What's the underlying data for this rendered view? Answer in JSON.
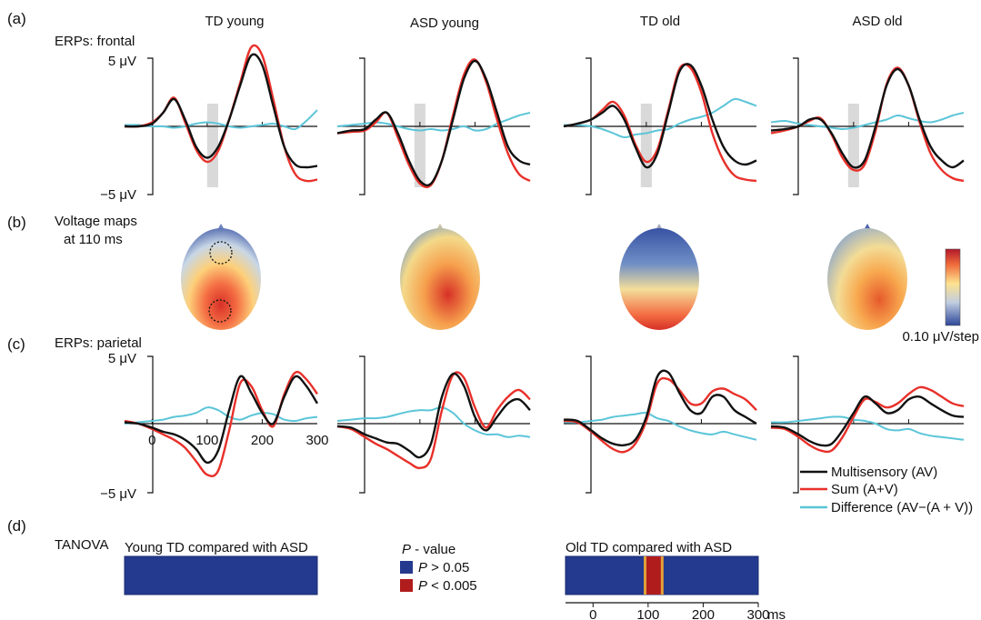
{
  "panels": {
    "a": "(a)",
    "b": "(b)",
    "c": "(c)",
    "d": "(d)"
  },
  "group_titles": [
    "TD young",
    "ASD young",
    "TD old",
    "ASD old"
  ],
  "frontal_label": "ERPs: frontal",
  "parietal_label": "ERPs: parietal",
  "voltage_label_1": "Voltage maps",
  "voltage_label_2": "at 110 ms",
  "colorbar_label": "0.10 μV/step",
  "y_top_label": "5 μV",
  "y_bottom_label": "−5 μV",
  "tanova_label": "TANOVA",
  "legend": {
    "av": "Multisensory (AV)",
    "sum": "Sum (A+V)",
    "diff": "Difference (AV−(A + V))"
  },
  "pvalue": {
    "title_italic": "P",
    "title_rest": " - value",
    "gt_italic": "P",
    "gt_rest": " > 0.05",
    "lt_italic": "P",
    "lt_rest": " < 0.005"
  },
  "colors": {
    "av": "#111111",
    "sum": "#e8302a",
    "diff": "#5bc5d8",
    "tanova_blue": "#243a8e",
    "tanova_red": "#b01c1c",
    "shade": "#d9d9d9"
  },
  "chart_data": [
    {
      "type": "line",
      "region": "frontal",
      "x_unit": "ms",
      "xlim": [
        -50,
        300
      ],
      "ylim": [
        -5,
        5
      ],
      "x": [
        -50,
        -25,
        0,
        20,
        40,
        60,
        80,
        100,
        120,
        140,
        160,
        180,
        200,
        220,
        240,
        260,
        280,
        300
      ],
      "groups": [
        {
          "name": "TD young",
          "highlight": [
            100,
            120
          ],
          "series": [
            {
              "name": "Multisensory (AV)",
              "values": [
                0,
                0,
                0.2,
                1.0,
                2.0,
                0.5,
                -1.5,
                -2.3,
                -1.5,
                0.5,
                3.0,
                5.2,
                4.5,
                1.5,
                -1.5,
                -2.8,
                -3.0,
                -2.9
              ]
            },
            {
              "name": "Sum (A+V)",
              "values": [
                0,
                0,
                0.3,
                1.0,
                2.1,
                0.3,
                -1.7,
                -2.6,
                -1.8,
                0.5,
                3.2,
                5.8,
                5.2,
                2.0,
                -1.5,
                -3.5,
                -4.0,
                -3.9
              ]
            },
            {
              "name": "Difference (AV−(A + V))",
              "values": [
                0.1,
                0.1,
                0,
                0,
                -0.1,
                0,
                0.2,
                0.3,
                0.2,
                0,
                -0.1,
                0,
                0.1,
                0.2,
                0,
                -0.2,
                0.4,
                1.2
              ]
            }
          ]
        },
        {
          "name": "ASD young",
          "highlight": [
            90,
            110
          ],
          "series": [
            {
              "name": "Multisensory (AV)",
              "values": [
                -0.5,
                -0.3,
                -0.2,
                0.5,
                1.0,
                -0.5,
                -2.5,
                -4.0,
                -4.2,
                -2.5,
                0.5,
                3.5,
                4.8,
                3.5,
                1.0,
                -1.5,
                -2.5,
                -2.8
              ]
            },
            {
              "name": "Sum (A+V)",
              "values": [
                -0.5,
                -0.4,
                -0.3,
                0.3,
                1.0,
                -0.8,
                -2.8,
                -4.2,
                -4.3,
                -2.5,
                0.8,
                3.8,
                4.9,
                3.3,
                0.5,
                -2.0,
                -3.5,
                -4.0
              ]
            },
            {
              "name": "Difference (AV−(A + V))",
              "values": [
                0,
                0.1,
                0.2,
                0.3,
                0.2,
                0,
                -0.2,
                -0.3,
                -0.2,
                -0.3,
                -0.2,
                0,
                -0.3,
                -0.2,
                0.2,
                0.5,
                0.8,
                1.0
              ]
            }
          ]
        },
        {
          "name": "TD old",
          "highlight": [
            90,
            110
          ],
          "series": [
            {
              "name": "Multisensory (AV)",
              "values": [
                0,
                0.2,
                0.5,
                1.0,
                1.5,
                0.5,
                -1.5,
                -3.0,
                -2.0,
                1.0,
                4.0,
                4.5,
                3.0,
                0.5,
                -1.5,
                -2.5,
                -2.8,
                -2.5
              ]
            },
            {
              "name": "Sum (A+V)",
              "values": [
                0,
                0.2,
                0.5,
                1.2,
                1.8,
                0.8,
                -1.3,
                -2.6,
                -1.7,
                1.2,
                4.2,
                4.3,
                2.5,
                -0.5,
                -2.5,
                -3.6,
                -3.9,
                -4.0
              ]
            },
            {
              "name": "Difference (AV−(A + V))",
              "values": [
                0.1,
                0.1,
                0,
                -0.2,
                -0.5,
                -0.8,
                -0.6,
                -0.5,
                -0.3,
                -0.2,
                0.2,
                0.5,
                0.7,
                1.0,
                1.5,
                2.0,
                1.8,
                1.5
              ]
            }
          ]
        },
        {
          "name": "ASD old",
          "highlight": [
            90,
            110
          ],
          "series": [
            {
              "name": "Multisensory (AV)",
              "values": [
                -0.3,
                -0.2,
                0,
                0.5,
                0.5,
                -0.5,
                -2.0,
                -3.0,
                -2.5,
                0,
                3.0,
                4.2,
                3.0,
                0.5,
                -1.5,
                -2.5,
                -3.0,
                -2.5
              ]
            },
            {
              "name": "Sum (A+V)",
              "values": [
                -0.5,
                -0.3,
                0,
                0.4,
                0.6,
                -0.6,
                -2.3,
                -3.2,
                -2.8,
                -0.3,
                3.1,
                4.3,
                3.0,
                0.3,
                -2.0,
                -3.2,
                -3.8,
                -4.0
              ]
            },
            {
              "name": "Difference (AV−(A + V))",
              "values": [
                0.3,
                0.4,
                0.2,
                0.1,
                0,
                -0.1,
                -0.2,
                -0.1,
                0.1,
                0.3,
                0.5,
                0.8,
                0.6,
                0.4,
                0.3,
                0.5,
                0.8,
                1.0
              ]
            }
          ]
        }
      ]
    },
    {
      "type": "line",
      "region": "parietal",
      "x_unit": "ms",
      "xlim": [
        -50,
        300
      ],
      "ylim": [
        -5,
        5
      ],
      "x_ticks": [
        0,
        100,
        200,
        300
      ],
      "x": [
        -50,
        -25,
        0,
        20,
        40,
        60,
        80,
        100,
        120,
        140,
        160,
        180,
        200,
        220,
        240,
        260,
        280,
        300
      ],
      "groups": [
        {
          "name": "TD young",
          "series": [
            {
              "name": "Multisensory (AV)",
              "values": [
                0.1,
                0,
                -0.3,
                -0.6,
                -0.8,
                -1.2,
                -1.9,
                -2.9,
                -2.0,
                1.0,
                3.5,
                2.3,
                0.8,
                0,
                2.0,
                3.5,
                2.8,
                1.5
              ]
            },
            {
              "name": "Sum (A+V)",
              "values": [
                0.2,
                0,
                -0.4,
                -0.8,
                -1.2,
                -1.8,
                -2.8,
                -3.8,
                -3.5,
                -0.5,
                3.0,
                2.8,
                1.0,
                -0.2,
                2.2,
                3.8,
                3.3,
                2.2
              ]
            },
            {
              "name": "Difference (AV−(A + V))",
              "values": [
                0,
                0.1,
                0.2,
                0.3,
                0.5,
                0.6,
                0.8,
                1.2,
                1.0,
                0.5,
                0.3,
                0.6,
                0.8,
                0.7,
                0.3,
                0.2,
                0.4,
                0.5
              ]
            }
          ]
        },
        {
          "name": "ASD young",
          "series": [
            {
              "name": "Multisensory (AV)",
              "values": [
                -0.2,
                -0.3,
                -0.8,
                -1.1,
                -1.4,
                -1.5,
                -2.0,
                -2.5,
                -1.5,
                2.0,
                3.7,
                2.8,
                0.5,
                -0.5,
                0.5,
                1.5,
                1.8,
                1.0
              ]
            },
            {
              "name": "Sum (A+V)",
              "values": [
                -0.2,
                -0.4,
                -1.0,
                -1.5,
                -1.9,
                -2.4,
                -2.9,
                -3.3,
                -2.6,
                1.0,
                3.6,
                3.4,
                1.2,
                -0.3,
                1.0,
                2.0,
                2.5,
                1.8
              ]
            },
            {
              "name": "Difference (AV−(A + V))",
              "values": [
                0.2,
                0.3,
                0.4,
                0.4,
                0.5,
                0.7,
                0.9,
                1.0,
                1.0,
                1.2,
                0.8,
                0.0,
                -0.5,
                -0.8,
                -0.8,
                -1.0,
                -0.9,
                -1.0
              ]
            }
          ]
        },
        {
          "name": "TD old",
          "series": [
            {
              "name": "Multisensory (AV)",
              "values": [
                0.3,
                0.2,
                -0.5,
                -1.1,
                -1.5,
                -1.6,
                -1.2,
                0.5,
                3.5,
                3.8,
                2.3,
                1.0,
                0.8,
                2.0,
                2.0,
                1.0,
                0.5,
                0
              ]
            },
            {
              "name": "Sum (A+V)",
              "values": [
                0.2,
                0.1,
                -0.6,
                -1.3,
                -1.9,
                -2.1,
                -1.5,
                0.2,
                3.0,
                3.3,
                2.5,
                1.5,
                1.5,
                2.4,
                2.6,
                2.2,
                1.8,
                1.0
              ]
            },
            {
              "name": "Difference (AV−(A + V))",
              "values": [
                0.1,
                0.1,
                0.2,
                0.3,
                0.5,
                0.6,
                0.7,
                0.8,
                0.4,
                0.2,
                -0.2,
                -0.5,
                -0.7,
                -0.8,
                -0.6,
                -0.8,
                -1.0,
                -1.2
              ]
            }
          ]
        },
        {
          "name": "ASD old",
          "series": [
            {
              "name": "Multisensory (AV)",
              "values": [
                -0.2,
                -0.3,
                -0.8,
                -1.3,
                -1.6,
                -1.5,
                -0.5,
                0.8,
                2.0,
                1.5,
                0.8,
                1.0,
                1.8,
                2.0,
                1.5,
                1.0,
                0.6,
                0.5
              ]
            },
            {
              "name": "Sum (A+V)",
              "values": [
                -0.3,
                -0.4,
                -1.0,
                -1.6,
                -2.0,
                -2.0,
                -1.0,
                0.5,
                1.8,
                1.6,
                1.2,
                1.5,
                2.2,
                2.7,
                2.5,
                2.0,
                1.5,
                1.3
              ]
            },
            {
              "name": "Difference (AV−(A + V))",
              "values": [
                0.1,
                0.1,
                0.2,
                0.3,
                0.4,
                0.5,
                0.5,
                0.3,
                0.2,
                0,
                -0.4,
                -0.5,
                -0.4,
                -0.7,
                -0.9,
                -1.0,
                -1.1,
                -1.2
              ]
            }
          ]
        }
      ]
    },
    {
      "type": "heatmap",
      "region": "TANOVA",
      "x_unit": "ms",
      "xlim": [
        -50,
        300
      ],
      "x_ticks": [
        0,
        100,
        200,
        300
      ],
      "rows": [
        {
          "name": "Young TD compared with ASD",
          "significant_windows": []
        },
        {
          "name": "Old TD compared with ASD",
          "significant_windows": [
            [
              92,
              128
            ]
          ]
        }
      ],
      "legend": [
        "P > 0.05",
        "P < 0.005"
      ]
    }
  ]
}
